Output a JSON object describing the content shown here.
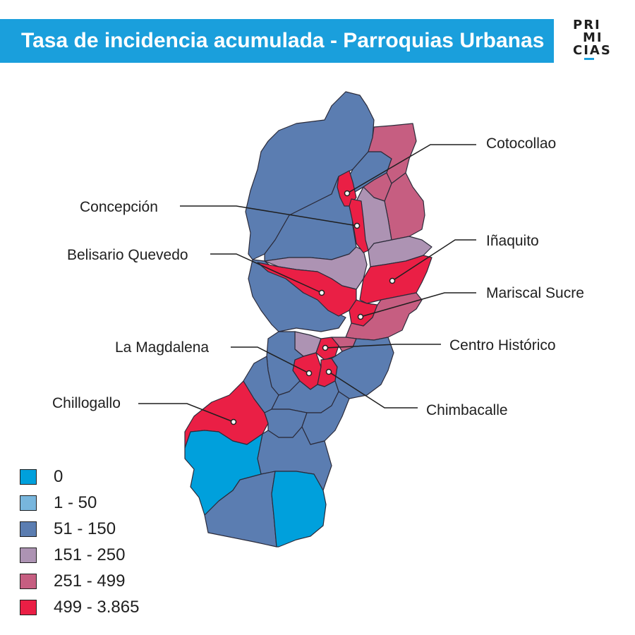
{
  "header": {
    "title": "Tasa de incidencia acumulada - Parroquias Urbanas"
  },
  "logo": {
    "line1": "PRI",
    "line2": "MI",
    "line3": "CIAS",
    "accent": "#1a9fdc"
  },
  "colors": {
    "c0": "#00a0dc",
    "c1_50": "#78b6dd",
    "c51_150": "#5b7db1",
    "c151_250": "#ad93b3",
    "c251_499": "#c65e81",
    "c499_3865": "#ea1f45"
  },
  "labels": {
    "cotocollao": "Cotocollao",
    "concepcion": "Concepción",
    "inaquito": "Iñaquito",
    "belisario": "Belisario Quevedo",
    "mariscal": "Mariscal Sucre",
    "centro": "Centro Histórico",
    "magdalena": "La Magdalena",
    "chillogallo": "Chillogallo",
    "chimbacalle": "Chimbacalle"
  },
  "legend": [
    {
      "label": "0",
      "color": "#00a0dc"
    },
    {
      "label": "1 - 50",
      "color": "#78b6dd"
    },
    {
      "label": "51 - 150",
      "color": "#5b7db1"
    },
    {
      "label": "151 - 250",
      "color": "#ad93b3"
    },
    {
      "label": "251 - 499",
      "color": "#c65e81"
    },
    {
      "label": "499 - 3.865",
      "color": "#ea1f45"
    }
  ]
}
